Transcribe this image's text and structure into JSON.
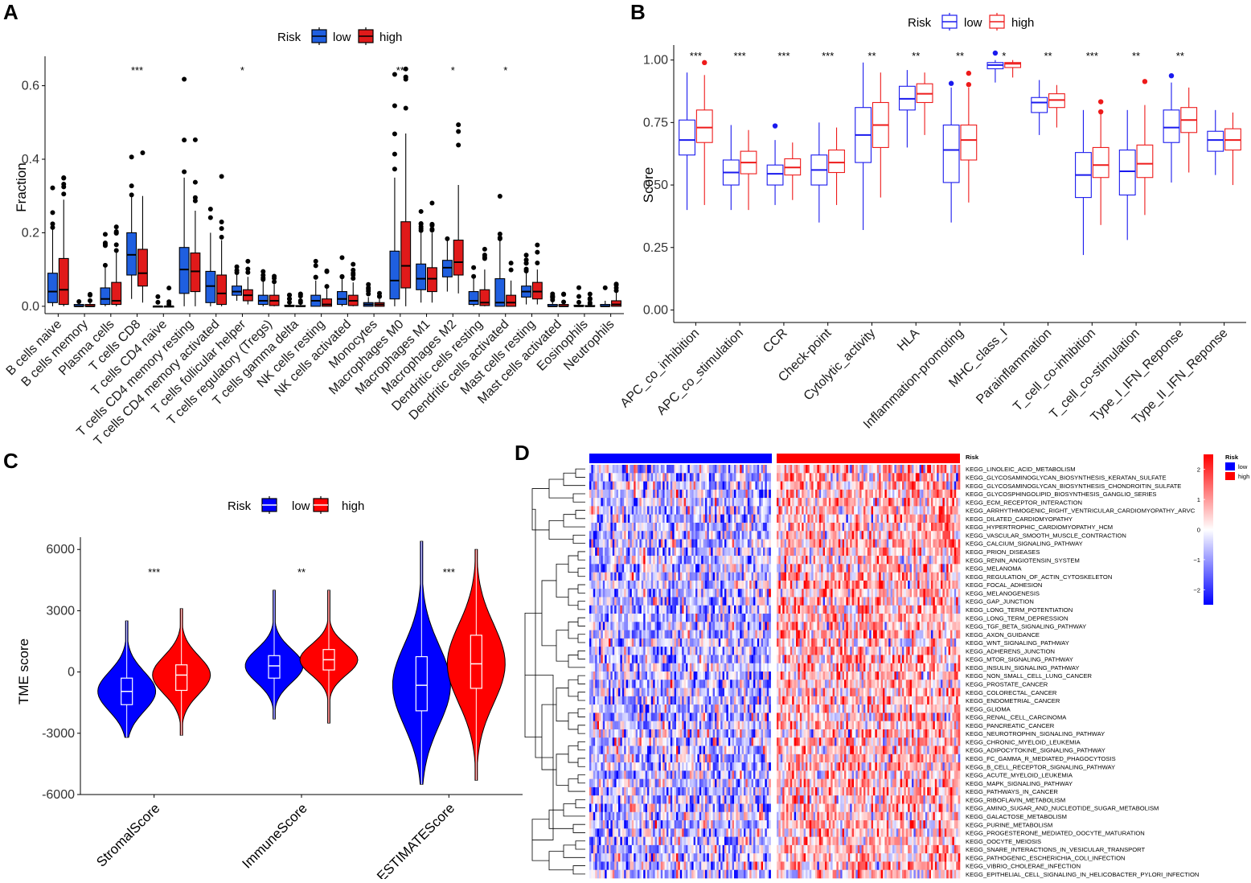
{
  "colors": {
    "low_fill": "#1f5fe0",
    "high_fill": "#e01a1a",
    "low_line": "#1a1aee",
    "high_line": "#ee1a1a",
    "axis": "#000000"
  },
  "chart_data": [
    {
      "id": "A",
      "type": "box",
      "panel_label": "A",
      "legend": {
        "title": "Risk",
        "low": "low",
        "high": "high",
        "position": "top"
      },
      "ylabel": "Fraction",
      "ylim": [
        -0.02,
        0.68
      ],
      "yticks": [
        "0.0",
        "0.2",
        "0.4",
        "0.6"
      ],
      "ytick_values": [
        0,
        0.2,
        0.4,
        0.6
      ],
      "categories": [
        "B cells naive",
        "B cells memory",
        "Plasma cells",
        "T cells CD8",
        "T cells CD4 naive",
        "T cells CD4 memory resting",
        "T cells CD4 memory activated",
        "T cells follicular helper",
        "T cells regulatory (Tregs)",
        "T cells gamma delta",
        "NK cells resting",
        "NK cells activated",
        "Monocytes",
        "Macrophages M0",
        "Macrophages M1",
        "Macrophages M2",
        "Dendritic cells resting",
        "Dendritic cells activated",
        "Mast cells resting",
        "Mast cells activated",
        "Eosinophils",
        "Neutrophils"
      ],
      "significance": [
        "",
        "",
        "",
        "***",
        "",
        "",
        "",
        "*",
        "",
        "",
        "",
        "",
        "",
        "**",
        "",
        "*",
        "",
        "*",
        "",
        "",
        "",
        ""
      ],
      "series": [
        {
          "name": "low",
          "boxes": [
            [
              0,
              0.01,
              0.04,
              0.09,
              0.21
            ],
            [
              0,
              0,
              0,
              0.005,
              0.01
            ],
            [
              0,
              0.005,
              0.02,
              0.05,
              0.11
            ],
            [
              0.02,
              0.085,
              0.14,
              0.2,
              0.3
            ],
            [
              0,
              0,
              0,
              0,
              0
            ],
            [
              0,
              0.035,
              0.1,
              0.16,
              0.35
            ],
            [
              0,
              0.01,
              0.055,
              0.095,
              0.2
            ],
            [
              0.015,
              0.03,
              0.04,
              0.055,
              0.09
            ],
            [
              0,
              0.005,
              0.015,
              0.03,
              0.07
            ],
            [
              0,
              0,
              0,
              0.003,
              0.01
            ],
            [
              0,
              0,
              0.015,
              0.03,
              0.07
            ],
            [
              0,
              0.005,
              0.02,
              0.04,
              0.08
            ],
            [
              0,
              0,
              0.005,
              0.01,
              0.025
            ],
            [
              0,
              0.02,
              0.07,
              0.15,
              0.35
            ],
            [
              0.01,
              0.045,
              0.075,
              0.115,
              0.2
            ],
            [
              0.04,
              0.08,
              0.105,
              0.125,
              0.18
            ],
            [
              0,
              0.005,
              0.015,
              0.04,
              0.08
            ],
            [
              0,
              0,
              0.01,
              0.075,
              0.18
            ],
            [
              0.005,
              0.025,
              0.04,
              0.055,
              0.09
            ],
            [
              0,
              0,
              0,
              0.005,
              0.015
            ],
            [
              0,
              0,
              0,
              0.003,
              0.01
            ],
            [
              0,
              0,
              0,
              0.005,
              0.015
            ]
          ]
        },
        {
          "name": "high",
          "boxes": [
            [
              0,
              0.005,
              0.045,
              0.13,
              0.29
            ],
            [
              0,
              0,
              0,
              0.005,
              0.01
            ],
            [
              0,
              0.005,
              0.015,
              0.065,
              0.15
            ],
            [
              0.01,
              0.055,
              0.09,
              0.155,
              0.3
            ],
            [
              0,
              0,
              0,
              0,
              0
            ],
            [
              0,
              0.04,
              0.095,
              0.145,
              0.26
            ],
            [
              0,
              0.005,
              0.035,
              0.085,
              0.18
            ],
            [
              0.005,
              0.015,
              0.03,
              0.045,
              0.08
            ],
            [
              0,
              0.002,
              0.015,
              0.03,
              0.06
            ],
            [
              0,
              0,
              0,
              0.002,
              0.005
            ],
            [
              0,
              0,
              0.005,
              0.02,
              0.05
            ],
            [
              0,
              0.002,
              0.015,
              0.03,
              0.065
            ],
            [
              0,
              0,
              0.005,
              0.01,
              0.02
            ],
            [
              0,
              0.05,
              0.11,
              0.23,
              0.47
            ],
            [
              0.01,
              0.04,
              0.075,
              0.105,
              0.2
            ],
            [
              0.035,
              0.085,
              0.12,
              0.18,
              0.33
            ],
            [
              0,
              0.002,
              0.01,
              0.045,
              0.1
            ],
            [
              0,
              0,
              0.01,
              0.03,
              0.07
            ],
            [
              0.005,
              0.02,
              0.04,
              0.065,
              0.1
            ],
            [
              0,
              0,
              0,
              0.005,
              0.01
            ],
            [
              0,
              0,
              0,
              0.002,
              0.005
            ],
            [
              0,
              0,
              0.005,
              0.015,
              0.04
            ]
          ]
        }
      ]
    },
    {
      "id": "B",
      "type": "box",
      "panel_label": "B",
      "legend": {
        "title": "Risk",
        "low": "low",
        "high": "high",
        "position": "top"
      },
      "ylabel": "Score",
      "ylim": [
        -0.05,
        1.06
      ],
      "yticks": [
        "0.00",
        "0.25",
        "0.50",
        "0.75",
        "1.00"
      ],
      "ytick_values": [
        0,
        0.25,
        0.5,
        0.75,
        1
      ],
      "categories": [
        "APC_co_inhibition",
        "APC_co_stimulation",
        "CCR",
        "Check-point",
        "Cytolytic_activity",
        "HLA",
        "Inflammation-promoting",
        "MHC_class_I",
        "Parainflammation",
        "T_cell_co-inhibition",
        "T_cell_co-stimulation",
        "Type_I_IFN_Reponse",
        "Type_II_IFN_Reponse"
      ],
      "significance": [
        "***",
        "***",
        "***",
        "***",
        "**",
        "**",
        "**",
        "*",
        "**",
        "***",
        "**",
        "**",
        ""
      ],
      "series": [
        {
          "name": "low",
          "boxes": [
            [
              0.4,
              0.62,
              0.68,
              0.76,
              0.95
            ],
            [
              0.4,
              0.5,
              0.55,
              0.6,
              0.74
            ],
            [
              0.42,
              0.5,
              0.545,
              0.58,
              0.68
            ],
            [
              0.35,
              0.5,
              0.56,
              0.62,
              0.75
            ],
            [
              0.32,
              0.59,
              0.7,
              0.81,
              0.99
            ],
            [
              0.65,
              0.8,
              0.845,
              0.895,
              0.96
            ],
            [
              0.35,
              0.51,
              0.64,
              0.74,
              0.89
            ],
            [
              0.91,
              0.965,
              0.98,
              0.99,
              1
            ],
            [
              0.7,
              0.79,
              0.83,
              0.85,
              0.92
            ],
            [
              0.22,
              0.45,
              0.54,
              0.63,
              0.8
            ],
            [
              0.28,
              0.46,
              0.555,
              0.64,
              0.8
            ],
            [
              0.51,
              0.67,
              0.73,
              0.8,
              0.91
            ],
            [
              0.54,
              0.635,
              0.68,
              0.715,
              0.8
            ]
          ]
        },
        {
          "name": "high",
          "boxes": [
            [
              0.42,
              0.67,
              0.73,
              0.8,
              0.94
            ],
            [
              0.4,
              0.545,
              0.59,
              0.635,
              0.72
            ],
            [
              0.44,
              0.54,
              0.57,
              0.605,
              0.67
            ],
            [
              0.42,
              0.55,
              0.59,
              0.64,
              0.73
            ],
            [
              0.45,
              0.65,
              0.74,
              0.83,
              0.95
            ],
            [
              0.7,
              0.83,
              0.865,
              0.905,
              0.95
            ],
            [
              0.43,
              0.6,
              0.68,
              0.74,
              0.89
            ],
            [
              0.93,
              0.97,
              0.985,
              0.99,
              1
            ],
            [
              0.73,
              0.81,
              0.84,
              0.865,
              0.9
            ],
            [
              0.34,
              0.53,
              0.58,
              0.65,
              0.79
            ],
            [
              0.38,
              0.53,
              0.585,
              0.66,
              0.82
            ],
            [
              0.55,
              0.71,
              0.76,
              0.81,
              0.89
            ],
            [
              0.5,
              0.64,
              0.68,
              0.725,
              0.79
            ]
          ]
        }
      ]
    },
    {
      "id": "C",
      "type": "violin",
      "panel_label": "C",
      "legend": {
        "title": "Risk",
        "low": "low",
        "high": "high",
        "position": "top"
      },
      "ylabel": "TME score",
      "ylim": [
        -6000,
        6600
      ],
      "yticks": [
        "-6000",
        "-3000",
        "0",
        "3000",
        "6000"
      ],
      "ytick_values": [
        -6000,
        -3000,
        0,
        3000,
        6000
      ],
      "categories": [
        "StromalScore",
        "ImmuneScore",
        "ESTIMATEScore"
      ],
      "significance": [
        "***",
        "**",
        "***"
      ],
      "series": [
        {
          "name": "low",
          "boxes": [
            [
              -3200,
              -1600,
              -950,
              -300,
              2500
            ],
            [
              -2300,
              -300,
              300,
              800,
              4000
            ],
            [
              -5500,
              -1900,
              -650,
              750,
              6400
            ]
          ]
        },
        {
          "name": "high",
          "boxes": [
            [
              -3100,
              -900,
              -150,
              350,
              3100
            ],
            [
              -2500,
              100,
              600,
              1100,
              4000
            ],
            [
              -5300,
              -800,
              400,
              1800,
              6000
            ]
          ]
        }
      ]
    },
    {
      "id": "D",
      "type": "heatmap",
      "panel_label": "D",
      "annotation_label": "Risk",
      "legend": {
        "title": "Risk",
        "low": "low",
        "high": "high"
      },
      "colorbar_ticks": [
        "2",
        "1",
        "0",
        "−1",
        "−2"
      ],
      "colorbar_tick_values": [
        2,
        1,
        0,
        -1,
        -2
      ],
      "rows": [
        "KEGG_LINOLEIC_ACID_METABOLISM",
        "KEGG_GLYCOSAMINOGLYCAN_BIOSYNTHESIS_KERATAN_SULFATE",
        "KEGG_GLYCOSAMINOGLYCAN_BIOSYNTHESIS_CHONDROITIN_SULFATE",
        "KEGG_GLYCOSPHINGOLIPID_BIOSYNTHESIS_GANGLIO_SERIES",
        "KEGG_ECM_RECEPTOR_INTERACTION",
        "KEGG_ARRHYTHMOGENIC_RIGHT_VENTRICULAR_CARDIOMYOPATHY_ARVC",
        "KEGG_DILATED_CARDIOMYOPATHY",
        "KEGG_HYPERTROPHIC_CARDIOMYOPATHY_HCM",
        "KEGG_VASCULAR_SMOOTH_MUSCLE_CONTRACTION",
        "KEGG_CALCIUM_SIGNALING_PATHWAY",
        "KEGG_PRION_DISEASES",
        "KEGG_RENIN_ANGIOTENSIN_SYSTEM",
        "KEGG_MELANOMA",
        "KEGG_REGULATION_OF_ACTIN_CYTOSKELETON",
        "KEGG_FOCAL_ADHESION",
        "KEGG_MELANOGENESIS",
        "KEGG_GAP_JUNCTION",
        "KEGG_LONG_TERM_POTENTIATION",
        "KEGG_LONG_TERM_DEPRESSION",
        "KEGG_TGF_BETA_SIGNALING_PATHWAY",
        "KEGG_AXON_GUIDANCE",
        "KEGG_WNT_SIGNALING_PATHWAY",
        "KEGG_ADHERENS_JUNCTION",
        "KEGG_MTOR_SIGNALING_PATHWAY",
        "KEGG_INSULIN_SIGNALING_PATHWAY",
        "KEGG_NON_SMALL_CELL_LUNG_CANCER",
        "KEGG_PROSTATE_CANCER",
        "KEGG_COLORECTAL_CANCER",
        "KEGG_ENDOMETRIAL_CANCER",
        "KEGG_GLIOMA",
        "KEGG_RENAL_CELL_CARCINOMA",
        "KEGG_PANCREATIC_CANCER",
        "KEGG_NEUROTROPHIN_SIGNALING_PATHWAY",
        "KEGG_CHRONIC_MYELOID_LEUKEMIA",
        "KEGG_ADIPOCYTOKINE_SIGNALING_PATHWAY",
        "KEGG_FC_GAMMA_R_MEDIATED_PHAGOCYTOSIS",
        "KEGG_B_CELL_RECEPTOR_SIGNALING_PATHWAY",
        "KEGG_ACUTE_MYELOID_LEUKEMIA",
        "KEGG_MAPK_SIGNALING_PATHWAY",
        "KEGG_PATHWAYS_IN_CANCER",
        "KEGG_RIBOFLAVIN_METABOLISM",
        "KEGG_AMINO_SUGAR_AND_NUCLEOTIDE_SUGAR_METABOLISM",
        "KEGG_GALACTOSE_METABOLISM",
        "KEGG_PURINE_METABOLISM",
        "KEGG_PROGESTERONE_MEDIATED_OOCYTE_MATURATION",
        "KEGG_OOCYTE_MEIOSIS",
        "KEGG_SNARE_INTERACTIONS_IN_VESICULAR_TRANSPORT",
        "KEGG_PATHOGENIC_ESCHERICHIA_COLI_INFECTION",
        "KEGG_VIBRIO_CHOLERAE_INFECTION",
        "KEGG_EPITHELIAL_CELL_SIGNALING_IN_HELICOBACTER_PYLORI_INFECTION"
      ],
      "groups": {
        "low_mean": -0.6,
        "high_mean": 0.6
      }
    }
  ]
}
